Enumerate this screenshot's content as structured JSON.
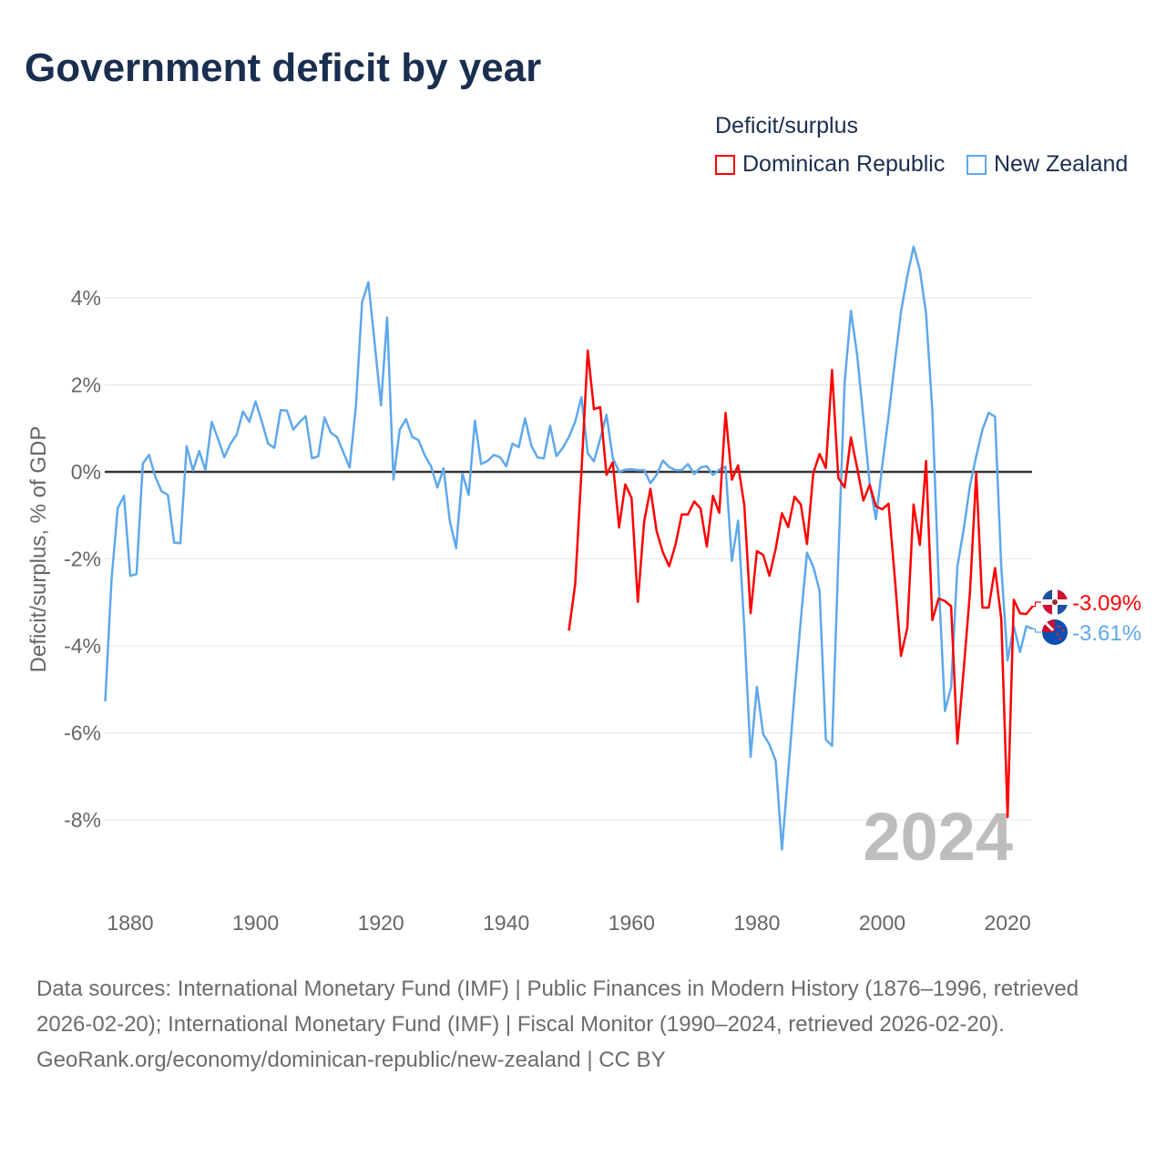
{
  "title": "Government deficit by year",
  "legend": {
    "title": "Deficit/surplus",
    "items": [
      {
        "name": "Dominican Republic",
        "color": "#ff0000"
      },
      {
        "name": "New Zealand",
        "color": "#5ea8ec"
      }
    ]
  },
  "footer": {
    "sources": "Data sources: International Monetary Fund (IMF) | Public Finances in Modern History (1876–1996, retrieved 2026-02-20); International Monetary Fund (IMF) | Fiscal Monitor (1990–2024, retrieved 2026-02-20).",
    "credit": "GeoRank.org/economy/dominican-republic/new-zealand | CC BY"
  },
  "chart_data": {
    "type": "line",
    "title": "Government deficit by year",
    "xlabel": "",
    "ylabel": "Deficit/surplus, % of GDP",
    "xlim": [
      1876,
      2024
    ],
    "ylim": [
      -9.5,
      5.5
    ],
    "x_ticks": [
      1880,
      1900,
      1920,
      1940,
      1960,
      1980,
      2000,
      2020
    ],
    "x_tick_labels": [
      "1880",
      "1900",
      "1920",
      "1940",
      "1960",
      "1980",
      "2000",
      "2020"
    ],
    "y_ticks": [
      4,
      2,
      0,
      -2,
      -4,
      -6,
      -8
    ],
    "y_tick_labels": [
      "4%",
      "2%",
      "0%",
      "-2%",
      "-4%",
      "-6%",
      "-8%"
    ],
    "grid": true,
    "year_watermark": "2024",
    "series": [
      {
        "name": "Dominican Republic",
        "color": "#ff0000",
        "start_year": 1950,
        "end_label": "-3.09%",
        "flag": "dominican-republic-flag",
        "values": [
          -3.65,
          -2.59,
          0.0,
          2.79,
          1.44,
          1.49,
          -0.07,
          0.22,
          -1.28,
          -0.29,
          -0.6,
          -2.99,
          -1.15,
          -0.39,
          -1.36,
          -1.85,
          -2.17,
          -1.68,
          -0.98,
          -0.98,
          -0.68,
          -0.84,
          -1.72,
          -0.55,
          -0.94,
          1.36,
          -0.18,
          0.15,
          -0.77,
          -3.25,
          -1.82,
          -1.91,
          -2.39,
          -1.77,
          -0.95,
          -1.27,
          -0.57,
          -0.75,
          -1.66,
          -0.03,
          0.41,
          0.09,
          2.34,
          -0.14,
          -0.36,
          0.79,
          0.09,
          -0.66,
          -0.3,
          -0.79,
          -0.86,
          -0.73,
          -2.41,
          -4.23,
          -3.59,
          -0.75,
          -1.68,
          0.25,
          -3.41,
          -2.91,
          -2.97,
          -3.09,
          -6.25,
          -4.55,
          -2.77,
          -0.03,
          -3.12,
          -3.12,
          -2.21,
          -3.39,
          -7.94,
          -2.94,
          -3.25,
          -3.27,
          -3.09
        ]
      },
      {
        "name": "New Zealand",
        "color": "#5ea8ec",
        "start_year": 1876,
        "end_label": "-3.61%",
        "flag": "new-zealand-flag",
        "values": [
          -5.28,
          -2.49,
          -0.84,
          -0.55,
          -2.39,
          -2.35,
          0.19,
          0.39,
          -0.11,
          -0.45,
          -0.53,
          -1.63,
          -1.64,
          0.59,
          0.03,
          0.48,
          0.04,
          1.15,
          0.76,
          0.34,
          0.65,
          0.86,
          1.39,
          1.15,
          1.62,
          1.15,
          0.65,
          0.55,
          1.42,
          1.41,
          0.97,
          1.14,
          1.28,
          0.31,
          0.36,
          1.25,
          0.9,
          0.8,
          0.45,
          0.1,
          1.49,
          3.9,
          4.36,
          2.96,
          1.53,
          3.55,
          -0.18,
          0.97,
          1.21,
          0.8,
          0.73,
          0.38,
          0.13,
          -0.36,
          0.08,
          -1.13,
          -1.75,
          -0.04,
          -0.53,
          1.18,
          0.18,
          0.25,
          0.39,
          0.34,
          0.13,
          0.65,
          0.57,
          1.23,
          0.6,
          0.33,
          0.31,
          1.06,
          0.36,
          0.55,
          0.8,
          1.15,
          1.72,
          0.43,
          0.24,
          0.76,
          1.31,
          0.32,
          0.0,
          0.05,
          0.06,
          0.04,
          0.04,
          -0.26,
          -0.07,
          0.26,
          0.11,
          0.04,
          0.04,
          0.18,
          -0.05,
          0.1,
          0.13,
          -0.07,
          0.05,
          0.12,
          -2.05,
          -1.12,
          -3.6,
          -6.55,
          -4.94,
          -6.03,
          -6.27,
          -6.64,
          -8.68,
          -6.9,
          -5.1,
          -3.4,
          -1.86,
          -2.18,
          -2.73,
          -6.15,
          -6.3,
          -2.0,
          2.05,
          3.7,
          2.68,
          1.23,
          -0.27,
          -1.09,
          0.14,
          1.27,
          2.5,
          3.68,
          4.5,
          5.18,
          4.64,
          3.64,
          1.41,
          -2.5,
          -5.5,
          -4.95,
          -2.18,
          -1.32,
          -0.32,
          0.36,
          0.97,
          1.36,
          1.27,
          -2.2,
          -4.34,
          -3.55,
          -4.14,
          -3.55,
          -3.61
        ]
      }
    ]
  }
}
